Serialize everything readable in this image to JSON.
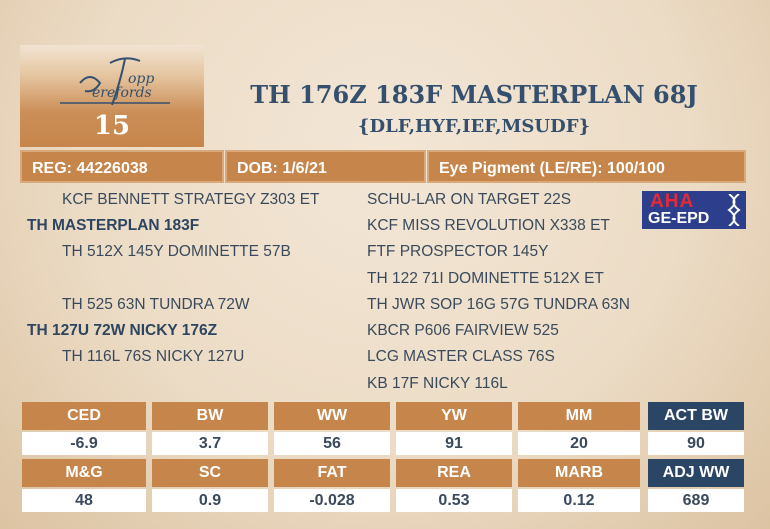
{
  "logo": {
    "text": "Topp Herefords"
  },
  "lot_number": "15",
  "title": "TH 176Z 183F MASTERPLAN 68J",
  "subtitle": "{DLF,HYF,IEF,MSUDF}",
  "info": {
    "reg": "REG: 44226038",
    "dob": "DOB: 1/6/21",
    "eye": "Eye Pigment (LE/RE): 100/100"
  },
  "pedigree_left": [
    {
      "text": "KCF BENNETT STRATEGY Z303 ET",
      "bold": false
    },
    {
      "text": "TH MASTERPLAN 183F",
      "bold": true
    },
    {
      "text": "TH 512X 145Y DOMINETTE 57B",
      "bold": false
    },
    {
      "text": "TH 525 63N TUNDRA 72W",
      "bold": false
    },
    {
      "text": "TH 127U 72W NICKY 176Z",
      "bold": true
    },
    {
      "text": "TH 116L 76S NICKY 127U",
      "bold": false
    }
  ],
  "pedigree_right": [
    "SCHU-LAR ON TARGET 22S",
    "KCF MISS REVOLUTION X338 ET",
    "FTF PROSPECTOR 145Y",
    "TH 122 71I DOMINETTE 512X ET",
    "TH JWR SOP 16G 57G TUNDRA 63N",
    "KBCR P606 FAIRVIEW 525",
    "LCG MASTER CLASS 76S",
    "KB 17F NICKY 116L"
  ],
  "badge": {
    "line1": "AHA",
    "line2": "GE-EPD"
  },
  "epd_row1": {
    "labels": [
      "CED",
      "BW",
      "WW",
      "YW",
      "MM"
    ],
    "values": [
      "-6.9",
      "3.7",
      "56",
      "91",
      "20"
    ]
  },
  "epd_row2": {
    "labels": [
      "M&G",
      "SC",
      "FAT",
      "REA",
      "MARB"
    ],
    "values": [
      "48",
      "0.9",
      "-0.028",
      "0.53",
      "0.12"
    ]
  },
  "act_bw": {
    "label": "ACT BW",
    "value": "90"
  },
  "adj_ww": {
    "label": "ADJ WW",
    "value": "689"
  },
  "colors": {
    "accent": "#c6854b",
    "navy": "#2b4565",
    "text": "#34506e"
  }
}
